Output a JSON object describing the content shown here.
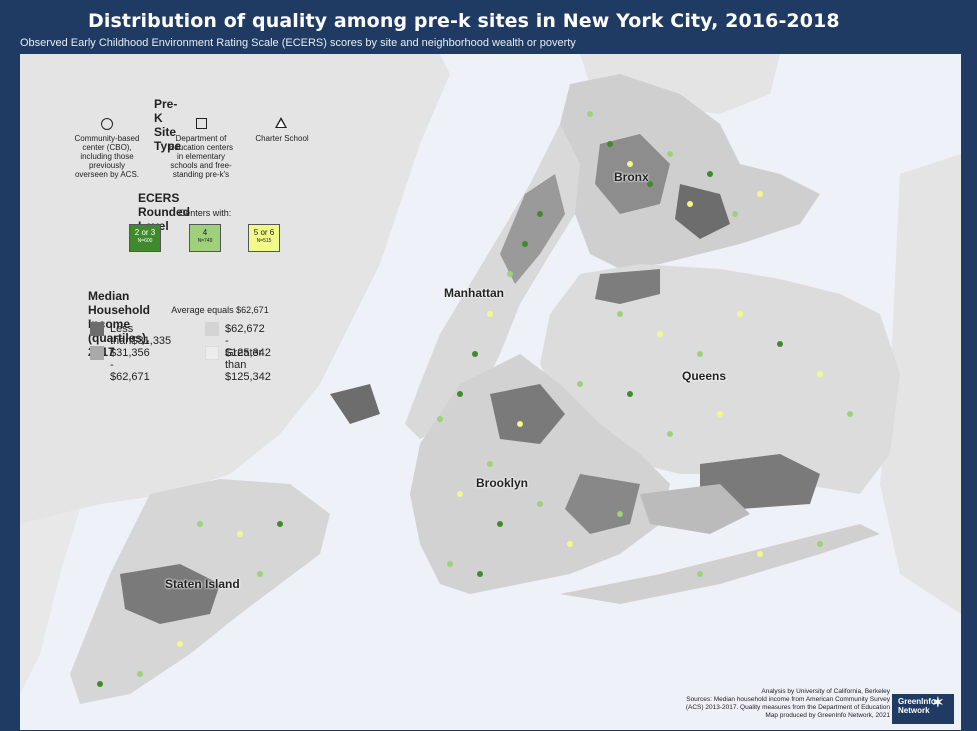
{
  "header": {
    "title": "Distribution of quality among pre-k sites in New York City, 2016-2018",
    "subtitle": "Observed Early Childhood Environment Rating Scale (ECERS) scores by site and neighborhood wealth or poverty"
  },
  "legend": {
    "site_type": {
      "heading": "Pre-K Site Type",
      "types": [
        {
          "icon": "circle-icon",
          "label": "Community-based center (CBO), including those previously overseen by ACS."
        },
        {
          "icon": "square-icon",
          "label": "Department of Education centers in elementary schools and free-standing pre-k's"
        },
        {
          "icon": "triangle-icon",
          "label": "Charter School"
        }
      ]
    },
    "ecers": {
      "heading": "ECERS Rounded Level",
      "subheading": "Centers with:",
      "levels": [
        {
          "label": "2 or 3",
          "n": "N=600",
          "color": "#3f8a2c"
        },
        {
          "label": "4",
          "n": "N=749",
          "color": "#9fd07c"
        },
        {
          "label": "5 or 6",
          "n": "N=515",
          "color": "#f1f98a"
        }
      ]
    },
    "income": {
      "heading": "Median Household Income (quartiles), 2017",
      "subheading": "Average equals $62,671",
      "quartiles": [
        {
          "label": "Less than$31,335",
          "color": "#6d6d6d"
        },
        {
          "label": "$62,672 - $125,342",
          "color": "#d4d4d4"
        },
        {
          "label": "$31,356 - $62,671",
          "color": "#a9a9a9"
        },
        {
          "label": "Greater than $125,342",
          "color": "#ececec"
        }
      ]
    }
  },
  "map": {
    "boroughs": {
      "bronx": "Bronx",
      "manhattan": "Manhattan",
      "queens": "Queens",
      "brooklyn": "Brooklyn",
      "staten_island": "Staten Island"
    },
    "water_color": "#eef1f8",
    "land_color": "#e6e6e6"
  },
  "credits": {
    "line1": "Analysis by University of California, Berkeley",
    "line2": "Sources: Median household income from American Community Survey",
    "line3": "(ACS) 2013-2017. Quality measures from the Department of Education",
    "line4": "Map produced by GreenInfo Network, 2021",
    "logo_line1": "GreenInfo",
    "logo_line2": "Network"
  }
}
